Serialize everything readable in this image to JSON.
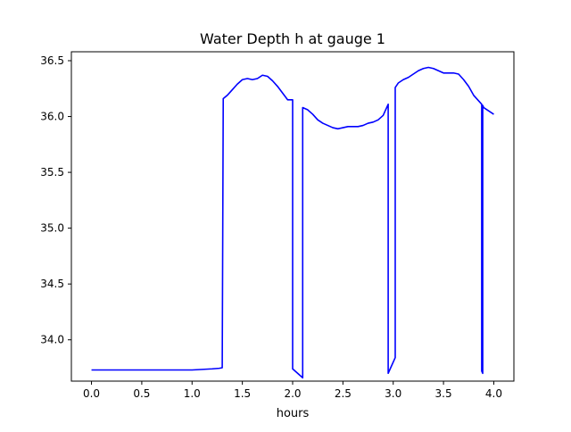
{
  "chart_data": {
    "type": "line",
    "title": "Water Depth h at gauge 1",
    "xlabel": "hours",
    "ylabel": "",
    "xlim": [
      -0.2,
      4.2
    ],
    "ylim": [
      33.63,
      36.58
    ],
    "grid": false,
    "legend": "none",
    "xticks": [
      0.0,
      0.5,
      1.0,
      1.5,
      2.0,
      2.5,
      3.0,
      3.5,
      4.0
    ],
    "xtick_labels": [
      "0.0",
      "0.5",
      "1.0",
      "1.5",
      "2.0",
      "2.5",
      "3.0",
      "3.5",
      "4.0"
    ],
    "yticks": [
      34.0,
      34.5,
      35.0,
      35.5,
      36.0,
      36.5
    ],
    "ytick_labels": [
      "34.0",
      "34.5",
      "35.0",
      "35.5",
      "36.0",
      "36.5"
    ],
    "series": [
      {
        "color": "#0000ff",
        "x": [
          0.0,
          0.2,
          0.4,
          0.6,
          0.8,
          1.0,
          1.1,
          1.2,
          1.27,
          1.3,
          1.31,
          1.35,
          1.4,
          1.45,
          1.5,
          1.55,
          1.6,
          1.65,
          1.7,
          1.75,
          1.8,
          1.85,
          1.9,
          1.95,
          2.0,
          2.0,
          2.05,
          2.1,
          2.1,
          2.15,
          2.2,
          2.25,
          2.3,
          2.35,
          2.4,
          2.45,
          2.5,
          2.55,
          2.6,
          2.65,
          2.7,
          2.75,
          2.8,
          2.85,
          2.9,
          2.95,
          2.95,
          3.02,
          3.02,
          3.05,
          3.1,
          3.15,
          3.2,
          3.25,
          3.3,
          3.35,
          3.4,
          3.45,
          3.5,
          3.55,
          3.6,
          3.65,
          3.7,
          3.75,
          3.8,
          3.85,
          3.88,
          3.88,
          3.89,
          3.89,
          3.9,
          3.95,
          4.0
        ],
        "y": [
          33.73,
          33.73,
          33.73,
          33.73,
          33.73,
          33.73,
          33.735,
          33.74,
          33.745,
          33.75,
          36.16,
          36.19,
          36.24,
          36.29,
          36.33,
          36.34,
          36.33,
          36.34,
          36.37,
          36.36,
          36.32,
          36.27,
          36.21,
          36.15,
          36.15,
          33.74,
          33.7,
          33.66,
          36.08,
          36.06,
          36.02,
          35.97,
          35.94,
          35.92,
          35.9,
          35.89,
          35.9,
          35.91,
          35.91,
          35.91,
          35.92,
          35.94,
          35.95,
          35.97,
          36.01,
          36.11,
          33.7,
          33.84,
          36.26,
          36.3,
          36.33,
          36.35,
          36.38,
          36.41,
          36.43,
          36.44,
          36.43,
          36.41,
          36.39,
          36.39,
          36.39,
          36.38,
          36.33,
          36.27,
          36.19,
          36.14,
          36.11,
          33.72,
          33.7,
          36.1,
          36.08,
          36.05,
          36.02
        ]
      }
    ]
  }
}
